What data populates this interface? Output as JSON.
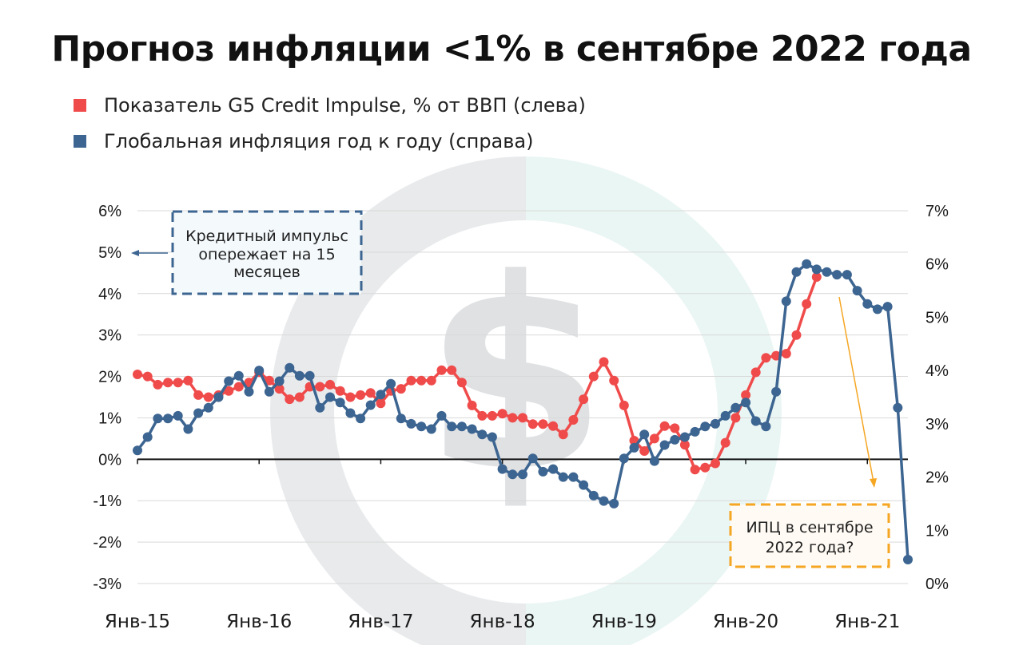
{
  "title": "Прогноз инфляции <1% в сентябре 2022 года",
  "legend": [
    {
      "label": "Показатель G5 Credit Impulse, % от ВВП (слева)",
      "color": "#f04b4b"
    },
    {
      "label": "Глобальная инфляция год к году (справа)",
      "color": "#3d6591"
    }
  ],
  "chart_data": {
    "type": "line",
    "title": "Прогноз инфляции <1% в сентябре 2022 года",
    "x_tick_labels": [
      "Янв-15",
      "Янв-16",
      "Янв-17",
      "Янв-18",
      "Янв-19",
      "Янв-20",
      "Янв-21"
    ],
    "y_left": {
      "ticks": [
        "6%",
        "5%",
        "4%",
        "3%",
        "2%",
        "1%",
        "0%",
        "-1%",
        "-2%",
        "-3%"
      ],
      "range": [
        -3,
        6
      ]
    },
    "y_right": {
      "ticks": [
        "7%",
        "6%",
        "5%",
        "4%",
        "3%",
        "2%",
        "1%",
        "0%"
      ],
      "range": [
        0,
        7
      ]
    },
    "grid": "horizontal",
    "legend_position": "top-left",
    "series": [
      {
        "name": "Показатель G5 Credit Impulse, % от ВВП (слева)",
        "axis": "left",
        "color": "#f04b4b",
        "start": "Янв-15",
        "frequency": "monthly",
        "values": [
          2.05,
          2.0,
          1.8,
          1.85,
          1.85,
          1.9,
          1.55,
          1.5,
          1.55,
          1.65,
          1.75,
          1.85,
          2.1,
          1.9,
          1.7,
          1.45,
          1.5,
          1.75,
          1.75,
          1.8,
          1.65,
          1.5,
          1.55,
          1.6,
          1.35,
          1.65,
          1.7,
          1.9,
          1.9,
          1.9,
          2.15,
          2.15,
          1.85,
          1.3,
          1.05,
          1.05,
          1.1,
          1.0,
          1.0,
          0.85,
          0.85,
          0.8,
          0.6,
          0.95,
          1.45,
          2.0,
          2.35,
          1.9,
          1.3,
          0.45,
          0.2,
          0.5,
          0.8,
          0.75,
          0.35,
          -0.25,
          -0.2,
          -0.1,
          0.4,
          1.0,
          1.55,
          2.1,
          2.45,
          2.5,
          2.55,
          3.0,
          3.75,
          4.4
        ]
      },
      {
        "name": "Глобальная инфляция год к году (справа)",
        "axis": "right",
        "color": "#3d6591",
        "start": "Янв-15",
        "frequency": "monthly",
        "values": [
          2.5,
          2.75,
          3.1,
          3.1,
          3.15,
          2.9,
          3.2,
          3.3,
          3.5,
          3.8,
          3.9,
          3.6,
          4.0,
          3.6,
          3.8,
          4.05,
          3.9,
          3.9,
          3.3,
          3.5,
          3.4,
          3.2,
          3.1,
          3.35,
          3.55,
          3.75,
          3.1,
          3.0,
          2.95,
          2.9,
          3.15,
          2.95,
          2.95,
          2.9,
          2.8,
          2.75,
          2.15,
          2.05,
          2.05,
          2.35,
          2.1,
          2.15,
          2.0,
          2.0,
          1.85,
          1.65,
          1.55,
          1.5,
          2.35,
          2.55,
          2.8,
          2.3,
          2.6,
          2.7,
          2.75,
          2.85,
          2.95,
          3.0,
          3.15,
          3.3,
          3.4,
          3.05,
          2.95,
          3.6,
          5.3,
          5.85,
          6.0,
          5.9,
          5.85,
          5.8,
          5.8,
          5.5,
          5.25,
          5.15,
          5.2,
          3.3,
          0.45
        ]
      }
    ],
    "annotations": [
      {
        "text": "Кредитный импульс опережает на 15 месяцев"
      },
      {
        "text": "ИПЦ в сентябре 2022 года?"
      }
    ]
  }
}
